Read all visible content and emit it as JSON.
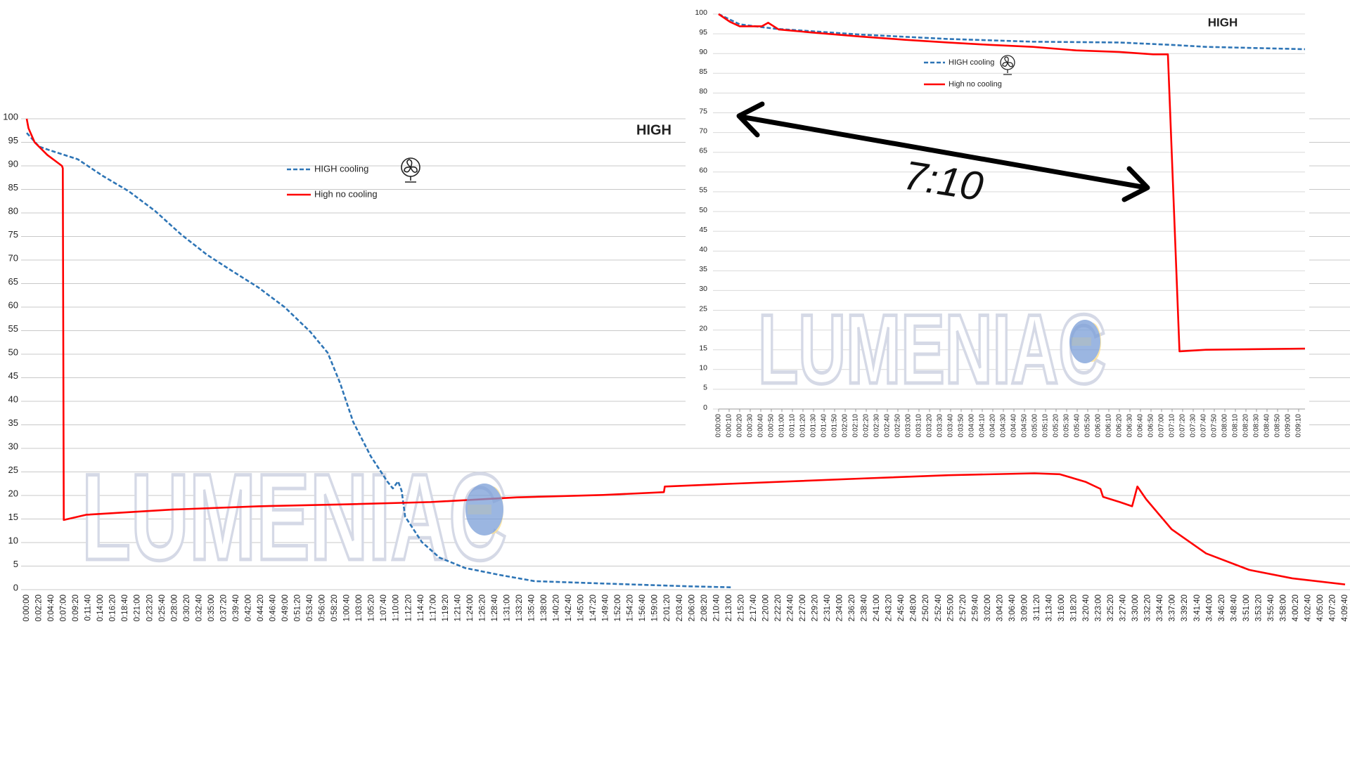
{
  "chart_data": [
    {
      "type": "line",
      "title": "HIGH",
      "watermark": "LUMENIAC",
      "xlim": [
        0,
        14980
      ],
      "ylim": [
        0,
        100
      ],
      "yticks": [
        0,
        5,
        10,
        15,
        20,
        25,
        30,
        35,
        40,
        45,
        50,
        55,
        60,
        65,
        70,
        75,
        80,
        85,
        90,
        95,
        100
      ],
      "xticks": [
        {
          "value": 0,
          "label": "0:00:00"
        },
        {
          "value": 140,
          "label": "0:02:20"
        },
        {
          "value": 280,
          "label": "0:04:40"
        },
        {
          "value": 420,
          "label": "0:07:00"
        },
        {
          "value": 560,
          "label": "0:09:20"
        },
        {
          "value": 700,
          "label": "0:11:40"
        },
        {
          "value": 840,
          "label": "0:14:00"
        },
        {
          "value": 980,
          "label": "0:16:20"
        },
        {
          "value": 1120,
          "label": "0:18:40"
        },
        {
          "value": 1260,
          "label": "0:21:00"
        },
        {
          "value": 1400,
          "label": "0:23:20"
        },
        {
          "value": 1540,
          "label": "0:25:40"
        },
        {
          "value": 1680,
          "label": "0:28:00"
        },
        {
          "value": 1820,
          "label": "0:30:20"
        },
        {
          "value": 1960,
          "label": "0:32:40"
        },
        {
          "value": 2100,
          "label": "0:35:00"
        },
        {
          "value": 2240,
          "label": "0:37:20"
        },
        {
          "value": 2380,
          "label": "0:39:40"
        },
        {
          "value": 2520,
          "label": "0:42:00"
        },
        {
          "value": 2660,
          "label": "0:44:20"
        },
        {
          "value": 2800,
          "label": "0:46:40"
        },
        {
          "value": 2940,
          "label": "0:49:00"
        },
        {
          "value": 3080,
          "label": "0:51:20"
        },
        {
          "value": 3220,
          "label": "0:53:40"
        },
        {
          "value": 3360,
          "label": "0:56:00"
        },
        {
          "value": 3500,
          "label": "0:58:20"
        },
        {
          "value": 3640,
          "label": "1:00:40"
        },
        {
          "value": 3780,
          "label": "1:03:00"
        },
        {
          "value": 3920,
          "label": "1:05:20"
        },
        {
          "value": 4060,
          "label": "1:07:40"
        },
        {
          "value": 4200,
          "label": "1:10:00"
        },
        {
          "value": 4340,
          "label": "1:12:20"
        },
        {
          "value": 4480,
          "label": "1:14:40"
        },
        {
          "value": 4620,
          "label": "1:17:00"
        },
        {
          "value": 4760,
          "label": "1:19:20"
        },
        {
          "value": 4900,
          "label": "1:21:40"
        },
        {
          "value": 5040,
          "label": "1:24:00"
        },
        {
          "value": 5180,
          "label": "1:26:20"
        },
        {
          "value": 5320,
          "label": "1:28:40"
        },
        {
          "value": 5460,
          "label": "1:31:00"
        },
        {
          "value": 5600,
          "label": "1:33:20"
        },
        {
          "value": 5740,
          "label": "1:35:40"
        },
        {
          "value": 5880,
          "label": "1:38:00"
        },
        {
          "value": 6020,
          "label": "1:40:20"
        },
        {
          "value": 6160,
          "label": "1:42:40"
        },
        {
          "value": 6300,
          "label": "1:45:00"
        },
        {
          "value": 6440,
          "label": "1:47:20"
        },
        {
          "value": 6580,
          "label": "1:49:40"
        },
        {
          "value": 6720,
          "label": "1:52:00"
        },
        {
          "value": 6860,
          "label": "1:54:20"
        },
        {
          "value": 7000,
          "label": "1:56:40"
        },
        {
          "value": 7140,
          "label": "1:59:00"
        },
        {
          "value": 7280,
          "label": "2:01:20"
        },
        {
          "value": 7420,
          "label": "2:03:40"
        },
        {
          "value": 7560,
          "label": "2:06:00"
        },
        {
          "value": 7700,
          "label": "2:08:20"
        },
        {
          "value": 7840,
          "label": "2:10:40"
        },
        {
          "value": 7980,
          "label": "2:13:00"
        },
        {
          "value": 8120,
          "label": "2:15:20"
        },
        {
          "value": 8260,
          "label": "2:17:40"
        },
        {
          "value": 8400,
          "label": "2:20:00"
        },
        {
          "value": 8540,
          "label": "2:22:20"
        },
        {
          "value": 8680,
          "label": "2:24:40"
        },
        {
          "value": 8820,
          "label": "2:27:00"
        },
        {
          "value": 8960,
          "label": "2:29:20"
        },
        {
          "value": 9100,
          "label": "2:31:40"
        },
        {
          "value": 9240,
          "label": "2:34:00"
        },
        {
          "value": 9380,
          "label": "2:36:20"
        },
        {
          "value": 9520,
          "label": "2:38:40"
        },
        {
          "value": 9660,
          "label": "2:41:00"
        },
        {
          "value": 9800,
          "label": "2:43:20"
        },
        {
          "value": 9940,
          "label": "2:45:40"
        },
        {
          "value": 10080,
          "label": "2:48:00"
        },
        {
          "value": 10220,
          "label": "2:50:20"
        },
        {
          "value": 10360,
          "label": "2:52:40"
        },
        {
          "value": 10500,
          "label": "2:55:00"
        },
        {
          "value": 10640,
          "label": "2:57:20"
        },
        {
          "value": 10780,
          "label": "2:59:40"
        },
        {
          "value": 10920,
          "label": "3:02:00"
        },
        {
          "value": 11060,
          "label": "3:04:20"
        },
        {
          "value": 11200,
          "label": "3:06:40"
        },
        {
          "value": 11340,
          "label": "3:09:00"
        },
        {
          "value": 11480,
          "label": "3:11:20"
        },
        {
          "value": 11620,
          "label": "3:13:40"
        },
        {
          "value": 11760,
          "label": "3:16:00"
        },
        {
          "value": 11900,
          "label": "3:18:20"
        },
        {
          "value": 12040,
          "label": "3:20:40"
        },
        {
          "value": 12180,
          "label": "3:23:00"
        },
        {
          "value": 12320,
          "label": "3:25:20"
        },
        {
          "value": 12460,
          "label": "3:27:40"
        },
        {
          "value": 12600,
          "label": "3:30:00"
        },
        {
          "value": 12740,
          "label": "3:32:20"
        },
        {
          "value": 12880,
          "label": "3:34:40"
        },
        {
          "value": 13020,
          "label": "3:37:00"
        },
        {
          "value": 13160,
          "label": "3:39:20"
        },
        {
          "value": 13300,
          "label": "3:41:40"
        },
        {
          "value": 13440,
          "label": "3:44:00"
        },
        {
          "value": 13580,
          "label": "3:46:20"
        },
        {
          "value": 13720,
          "label": "3:48:40"
        },
        {
          "value": 13860,
          "label": "3:51:00"
        },
        {
          "value": 14000,
          "label": "3:53:20"
        },
        {
          "value": 14140,
          "label": "3:55:40"
        },
        {
          "value": 14280,
          "label": "3:58:00"
        },
        {
          "value": 14420,
          "label": "4:00:20"
        },
        {
          "value": 14560,
          "label": "4:02:40"
        },
        {
          "value": 14700,
          "label": "4:05:00"
        },
        {
          "value": 14840,
          "label": "4:07:20"
        },
        {
          "value": 14980,
          "label": "4:09:40"
        }
      ],
      "grid": true,
      "series": [
        {
          "name": "HIGH cooling",
          "color": "#2e75b6",
          "dashed": true,
          "x": [
            0,
            140,
            280,
            580,
            870,
            1160,
            1460,
            1750,
            2050,
            2340,
            2630,
            2930,
            3220,
            3420,
            3560,
            3710,
            3910,
            4100,
            4160,
            4220,
            4260,
            4300,
            4490,
            4690,
            4980,
            5380,
            5770,
            6550,
            7530,
            8000
          ],
          "values": [
            97,
            94.1,
            93.2,
            91.4,
            87.8,
            84.6,
            80.4,
            75.5,
            71.1,
            67.6,
            64.2,
            60,
            54.8,
            50.3,
            43.9,
            35.6,
            28.3,
            22.9,
            21.5,
            23,
            21,
            15.5,
            10.1,
            6.8,
            4.6,
            3.1,
            1.8,
            1.3,
            0.7,
            0.5
          ]
        },
        {
          "name": "High no cooling",
          "color": "#ff0000",
          "dashed": false,
          "x": [
            0,
            20,
            90,
            235,
            400,
            410,
            421,
            675,
            1655,
            2630,
            3610,
            4590,
            5570,
            6550,
            7240,
            7250,
            8020,
            9490,
            10470,
            11450,
            11740,
            12030,
            12200,
            12230,
            12420,
            12560,
            12620,
            12720,
            13010,
            13400,
            13890,
            14380,
            14980
          ],
          "values": [
            100,
            98,
            95,
            92.3,
            90,
            89.5,
            14.8,
            15.9,
            17,
            17.7,
            18.1,
            18.6,
            19.6,
            20.1,
            20.7,
            21.9,
            22.5,
            23.6,
            24.3,
            24.7,
            24.5,
            22.9,
            21.4,
            19.7,
            18.6,
            17.7,
            21.9,
            19.2,
            12.8,
            7.7,
            4.2,
            2.4,
            1.1
          ]
        }
      ]
    },
    {
      "type": "line",
      "title": "HIGH",
      "watermark": "LUMENIAC",
      "annotation": "7:10",
      "xlim": [
        0,
        556
      ],
      "ylim": [
        0,
        100
      ],
      "yticks": [
        0,
        5,
        10,
        15,
        20,
        25,
        30,
        35,
        40,
        45,
        50,
        55,
        60,
        65,
        70,
        75,
        80,
        85,
        90,
        95,
        100
      ],
      "xticks": [
        {
          "value": 0,
          "label": "0:00:00"
        },
        {
          "value": 10,
          "label": "0:00:10"
        },
        {
          "value": 20,
          "label": "0:00:20"
        },
        {
          "value": 30,
          "label": "0:00:30"
        },
        {
          "value": 40,
          "label": "0:00:40"
        },
        {
          "value": 50,
          "label": "0:00:50"
        },
        {
          "value": 60,
          "label": "0:01:00"
        },
        {
          "value": 70,
          "label": "0:01:10"
        },
        {
          "value": 80,
          "label": "0:01:20"
        },
        {
          "value": 90,
          "label": "0:01:30"
        },
        {
          "value": 100,
          "label": "0:01:40"
        },
        {
          "value": 110,
          "label": "0:01:50"
        },
        {
          "value": 120,
          "label": "0:02:00"
        },
        {
          "value": 130,
          "label": "0:02:10"
        },
        {
          "value": 140,
          "label": "0:02:20"
        },
        {
          "value": 150,
          "label": "0:02:30"
        },
        {
          "value": 160,
          "label": "0:02:40"
        },
        {
          "value": 170,
          "label": "0:02:50"
        },
        {
          "value": 180,
          "label": "0:03:00"
        },
        {
          "value": 190,
          "label": "0:03:10"
        },
        {
          "value": 200,
          "label": "0:03:20"
        },
        {
          "value": 210,
          "label": "0:03:30"
        },
        {
          "value": 220,
          "label": "0:03:40"
        },
        {
          "value": 230,
          "label": "0:03:50"
        },
        {
          "value": 240,
          "label": "0:04:00"
        },
        {
          "value": 250,
          "label": "0:04:10"
        },
        {
          "value": 260,
          "label": "0:04:20"
        },
        {
          "value": 270,
          "label": "0:04:30"
        },
        {
          "value": 280,
          "label": "0:04:40"
        },
        {
          "value": 290,
          "label": "0:04:50"
        },
        {
          "value": 300,
          "label": "0:05:00"
        },
        {
          "value": 310,
          "label": "0:05:10"
        },
        {
          "value": 320,
          "label": "0:05:20"
        },
        {
          "value": 330,
          "label": "0:05:30"
        },
        {
          "value": 340,
          "label": "0:05:40"
        },
        {
          "value": 350,
          "label": "0:05:50"
        },
        {
          "value": 360,
          "label": "0:06:00"
        },
        {
          "value": 370,
          "label": "0:06:10"
        },
        {
          "value": 380,
          "label": "0:06:20"
        },
        {
          "value": 390,
          "label": "0:06:30"
        },
        {
          "value": 400,
          "label": "0:06:40"
        },
        {
          "value": 410,
          "label": "0:06:50"
        },
        {
          "value": 420,
          "label": "0:07:00"
        },
        {
          "value": 430,
          "label": "0:07:10"
        },
        {
          "value": 440,
          "label": "0:07:20"
        },
        {
          "value": 450,
          "label": "0:07:30"
        },
        {
          "value": 460,
          "label": "0:07:40"
        },
        {
          "value": 470,
          "label": "0:07:50"
        },
        {
          "value": 480,
          "label": "0:08:00"
        },
        {
          "value": 490,
          "label": "0:08:10"
        },
        {
          "value": 500,
          "label": "0:08:20"
        },
        {
          "value": 510,
          "label": "0:08:30"
        },
        {
          "value": 520,
          "label": "0:08:40"
        },
        {
          "value": 530,
          "label": "0:08:50"
        },
        {
          "value": 540,
          "label": "0:09:00"
        },
        {
          "value": 550,
          "label": "0:09:10"
        }
      ],
      "grid": true,
      "series": [
        {
          "name": "HIGH cooling",
          "color": "#2e75b6",
          "dashed": true,
          "x": [
            0,
            20,
            53,
            135,
            217,
            298,
            380,
            429,
            462,
            556
          ],
          "values": [
            100,
            97.4,
            96.3,
            94.8,
            93.7,
            93,
            92.8,
            92.2,
            91.7,
            91.1
          ]
        },
        {
          "name": "High no cooling",
          "color": "#ff0000",
          "dashed": false,
          "x": [
            0,
            11,
            20,
            41,
            47,
            57,
            94,
            135,
            176,
            217,
            257,
            298,
            339,
            380,
            412,
            426,
            437,
            462,
            556
          ],
          "values": [
            100,
            98,
            96.9,
            96.9,
            97.8,
            96.1,
            95.2,
            94.3,
            93.5,
            92.8,
            92.2,
            91.7,
            90.8,
            90.4,
            89.8,
            89.8,
            14.6,
            15,
            15.3
          ]
        }
      ]
    }
  ]
}
